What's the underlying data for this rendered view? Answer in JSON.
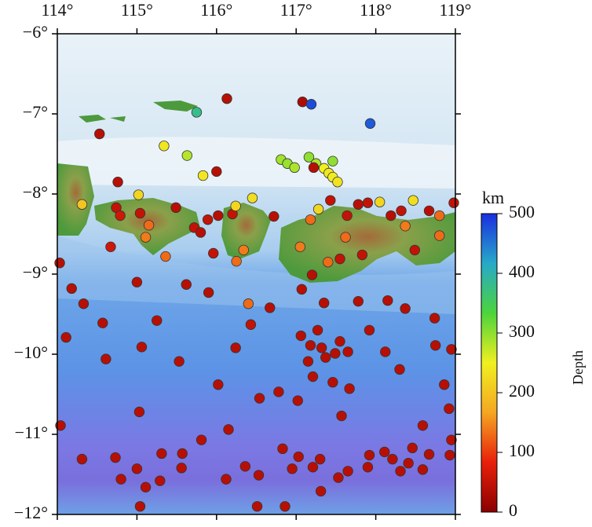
{
  "chart_data": {
    "type": "scatter",
    "xlim": [
      114,
      119
    ],
    "ylim": [
      -12,
      -6
    ],
    "xticks": [
      {
        "value": 114,
        "label": "114°"
      },
      {
        "value": 115,
        "label": "115°"
      },
      {
        "value": 116,
        "label": "116°"
      },
      {
        "value": 117,
        "label": "117°"
      },
      {
        "value": 118,
        "label": "118°"
      },
      {
        "value": 119,
        "label": "119°"
      }
    ],
    "yticks": [
      {
        "value": -6,
        "label": "−6°"
      },
      {
        "value": -7,
        "label": "−7°"
      },
      {
        "value": -8,
        "label": "−8°"
      },
      {
        "value": -9,
        "label": "−9°"
      },
      {
        "value": -10,
        "label": "−10°"
      },
      {
        "value": -11,
        "label": "−11°"
      },
      {
        "value": -12,
        "label": "−12°"
      }
    ],
    "colorbar_title": "Depth",
    "colorbar_unit": "km",
    "clim": [
      0,
      500
    ],
    "cticks": [
      0,
      100,
      200,
      300,
      400,
      500
    ],
    "colorscale": [
      "#8b0000",
      "#e8200a",
      "#f5a623",
      "#f0f020",
      "#4cd43c",
      "#27a9c9",
      "#1a2ee0"
    ],
    "x": [
      116.13,
      117.08,
      117.19,
      117.93,
      115.75,
      114.53,
      115.34,
      115.63,
      115.83,
      116.0,
      116.81,
      116.89,
      116.98,
      117.16,
      117.25,
      117.35,
      117.41,
      117.46,
      117.52,
      117.46,
      117.22,
      114.76,
      115.02,
      114.31,
      114.74,
      114.79,
      115.04,
      115.15,
      115.49,
      115.72,
      115.8,
      115.89,
      116.02,
      116.2,
      116.24,
      116.45,
      116.72,
      117.18,
      117.28,
      117.43,
      117.64,
      117.78,
      117.9,
      118.05,
      118.19,
      118.32,
      118.47,
      118.67,
      118.8,
      118.98,
      117.62,
      118.37,
      118.49,
      118.8,
      117.05,
      117.2,
      117.55,
      117.4,
      117.83,
      115.11,
      114.67,
      115.36,
      115.96,
      116.34,
      116.25,
      114.03,
      114.18,
      114.33,
      114.57,
      114.11,
      114.61,
      115.0,
      115.25,
      115.62,
      115.9,
      116.4,
      116.43,
      116.24,
      116.67,
      117.07,
      117.35,
      117.78,
      118.15,
      118.37,
      118.74,
      117.06,
      117.18,
      117.27,
      117.32,
      117.15,
      117.37,
      117.49,
      117.55,
      117.65,
      117.21,
      117.46,
      117.67,
      117.57,
      117.92,
      118.12,
      118.3,
      118.75,
      118.95,
      118.86,
      118.92,
      118.59,
      115.06,
      115.53,
      116.02,
      116.54,
      116.78,
      117.02,
      114.04,
      115.03,
      114.31,
      114.73,
      115.0,
      115.11,
      114.8,
      115.31,
      115.57,
      115.56,
      115.81,
      116.15,
      116.12,
      116.36,
      116.53,
      116.83,
      117.03,
      116.95,
      117.21,
      117.3,
      117.31,
      117.53,
      117.65,
      117.9,
      117.92,
      118.11,
      118.21,
      118.31,
      118.46,
      118.67,
      118.95,
      118.93,
      116.86,
      116.51,
      115.04,
      115.29,
      118.41,
      118.59
    ],
    "y": [
      -6.81,
      -6.85,
      -6.88,
      -7.12,
      -6.98,
      -7.25,
      -7.4,
      -7.52,
      -7.77,
      -7.72,
      -7.57,
      -7.62,
      -7.67,
      -7.54,
      -7.62,
      -7.68,
      -7.74,
      -7.79,
      -7.85,
      -7.59,
      -7.67,
      -7.85,
      -8.01,
      -8.13,
      -8.17,
      -8.27,
      -8.24,
      -8.39,
      -8.17,
      -8.42,
      -8.48,
      -8.32,
      -8.27,
      -8.25,
      -8.15,
      -8.05,
      -8.28,
      -8.32,
      -8.19,
      -8.08,
      -8.27,
      -8.13,
      -8.11,
      -8.1,
      -8.27,
      -8.21,
      -8.08,
      -8.21,
      -8.27,
      -8.11,
      -8.54,
      -8.4,
      -8.7,
      -8.52,
      -8.66,
      -9.01,
      -8.81,
      -8.85,
      -8.76,
      -8.54,
      -8.66,
      -8.78,
      -8.74,
      -8.7,
      -8.84,
      -8.86,
      -9.18,
      -9.37,
      -9.61,
      -9.79,
      -10.06,
      -9.1,
      -9.58,
      -9.13,
      -9.23,
      -9.37,
      -9.63,
      -9.92,
      -9.42,
      -9.19,
      -9.36,
      -9.34,
      -9.33,
      -9.43,
      -9.55,
      -9.77,
      -9.89,
      -9.7,
      -9.92,
      -10.09,
      -10.04,
      -9.99,
      -9.84,
      -9.97,
      -10.28,
      -10.35,
      -10.43,
      -10.77,
      -9.7,
      -9.97,
      -10.19,
      -9.89,
      -9.94,
      -10.38,
      -10.68,
      -10.89,
      -9.91,
      -10.09,
      -10.38,
      -10.55,
      -10.47,
      -10.58,
      -10.89,
      -10.72,
      -11.31,
      -11.29,
      -11.43,
      -11.66,
      -11.56,
      -11.24,
      -11.24,
      -11.42,
      -11.07,
      -10.94,
      -11.56,
      -11.4,
      -11.51,
      -11.18,
      -11.28,
      -11.43,
      -11.41,
      -11.31,
      -11.71,
      -11.54,
      -11.46,
      -11.41,
      -11.26,
      -11.22,
      -11.31,
      -11.46,
      -11.17,
      -11.25,
      -11.07,
      -11.26,
      -11.9,
      -11.9,
      -11.9,
      -11.58,
      -11.36,
      -11.44
    ],
    "depth": [
      40,
      30,
      480,
      470,
      380,
      40,
      240,
      280,
      240,
      40,
      290,
      295,
      285,
      300,
      285,
      250,
      240,
      245,
      235,
      300,
      40,
      40,
      220,
      200,
      50,
      60,
      50,
      130,
      40,
      50,
      40,
      50,
      40,
      50,
      220,
      230,
      40,
      130,
      220,
      50,
      50,
      40,
      50,
      220,
      40,
      50,
      230,
      40,
      130,
      50,
      130,
      140,
      50,
      130,
      140,
      40,
      50,
      130,
      50,
      140,
      60,
      130,
      50,
      140,
      130,
      40,
      40,
      40,
      40,
      40,
      40,
      40,
      40,
      40,
      40,
      130,
      50,
      40,
      40,
      40,
      40,
      40,
      40,
      40,
      40,
      40,
      40,
      40,
      40,
      40,
      40,
      40,
      40,
      40,
      40,
      40,
      40,
      40,
      40,
      40,
      40,
      40,
      40,
      40,
      40,
      40,
      40,
      40,
      40,
      40,
      40,
      40,
      40,
      40,
      40,
      40,
      40,
      40,
      40,
      40,
      40,
      40,
      40,
      40,
      40,
      40,
      40,
      40,
      40,
      40,
      40,
      40,
      40,
      40,
      40,
      40,
      40,
      40,
      40,
      40,
      40,
      40,
      40,
      40,
      40,
      40,
      40,
      40,
      40,
      40
    ]
  }
}
